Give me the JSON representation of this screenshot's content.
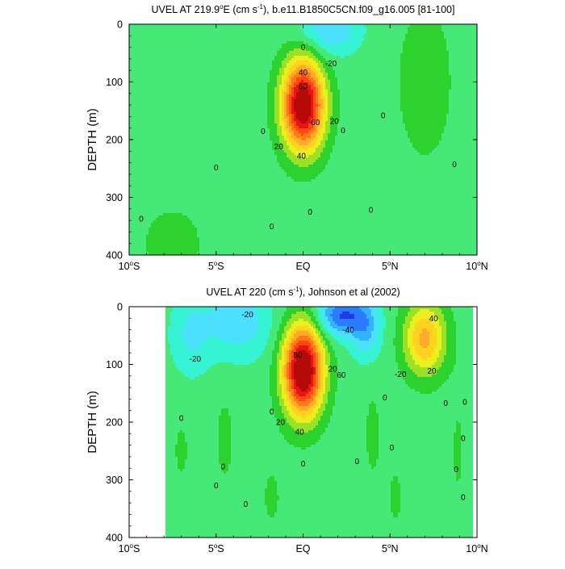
{
  "chart_data": [
    {
      "type": "heatmap",
      "title": "UVEL AT 219.9°E (cm s⁻¹), b.e11.B1850C5CN.f09_g16.005 [81-100]",
      "title_parts": {
        "pre": "UVEL AT 219.9",
        "deg": "o",
        "mid": "E (cm s",
        "sup": "-1",
        "post": "), b.e11.B1850C5CN.f09_g16.005 [81-100]"
      },
      "xlabel": "",
      "ylabel": "DEPTH (m)",
      "xlim": [
        -10,
        10
      ],
      "ylim": [
        400,
        0
      ],
      "x_ticks": [
        {
          "value": -10,
          "num": "10",
          "deg": "o",
          "hemi": "S"
        },
        {
          "value": -5,
          "num": "5",
          "deg": "o",
          "hemi": "S"
        },
        {
          "value": 0,
          "num": "EQ",
          "deg": "",
          "hemi": ""
        },
        {
          "value": 5,
          "num": "5",
          "deg": "o",
          "hemi": "N"
        },
        {
          "value": 10,
          "num": "10",
          "deg": "o",
          "hemi": "N"
        }
      ],
      "y_ticks": [
        "0",
        "100",
        "200",
        "300",
        "400"
      ],
      "y_tick_values": [
        0,
        100,
        200,
        300,
        400
      ],
      "features": [
        {
          "kind": "jet",
          "x": 0,
          "y": 140,
          "peak": 100,
          "sx": 0.85,
          "sy": 55
        },
        {
          "kind": "jet",
          "x": 7,
          "y": 100,
          "peak": 8,
          "sx": 1.5,
          "sy": 130
        },
        {
          "kind": "jet",
          "x": -7.5,
          "y": 380,
          "peak": 6,
          "sx": 2.5,
          "sy": 90
        },
        {
          "kind": "jet",
          "x": 1.5,
          "y": 10,
          "peak": -25,
          "sx": 1.2,
          "sy": 30
        }
      ],
      "contour_labels": [
        {
          "x": 0,
          "y": 40,
          "text": "0"
        },
        {
          "x": 1.6,
          "y": 68,
          "text": "-20"
        },
        {
          "x": 0,
          "y": 83,
          "text": "40"
        },
        {
          "x": 0,
          "y": 108,
          "text": "60"
        },
        {
          "x": 0.7,
          "y": 170,
          "text": "60"
        },
        {
          "x": 1.8,
          "y": 168,
          "text": "20"
        },
        {
          "x": -1.4,
          "y": 212,
          "text": "20"
        },
        {
          "x": -0.1,
          "y": 228,
          "text": "40"
        },
        {
          "x": -2.3,
          "y": 185,
          "text": "0"
        },
        {
          "x": 2.3,
          "y": 184,
          "text": "0"
        },
        {
          "x": 4.6,
          "y": 158,
          "text": "0"
        },
        {
          "x": -5.0,
          "y": 248,
          "text": "0"
        },
        {
          "x": -9.3,
          "y": 337,
          "text": "0"
        },
        {
          "x": -1.8,
          "y": 350,
          "text": "0"
        },
        {
          "x": 0.4,
          "y": 325,
          "text": "0"
        },
        {
          "x": 3.9,
          "y": 322,
          "text": "0"
        },
        {
          "x": 8.7,
          "y": 243,
          "text": "0"
        }
      ]
    },
    {
      "type": "heatmap",
      "title": "UVEL AT 220 (cm s⁻¹), Johnson et al (2002)",
      "title_parts": {
        "pre": "UVEL AT 220",
        "deg": "",
        "mid": " (cm s",
        "sup": "-1",
        "post": "), Johnson et al (2002)"
      },
      "xlabel": "",
      "ylabel": "DEPTH (m)",
      "xlim": [
        -10,
        10
      ],
      "ylim": [
        400,
        0
      ],
      "x_ticks": [
        {
          "value": -10,
          "num": "10",
          "deg": "o",
          "hemi": "S"
        },
        {
          "value": -5,
          "num": "5",
          "deg": "o",
          "hemi": "S"
        },
        {
          "value": 0,
          "num": "EQ",
          "deg": "",
          "hemi": ""
        },
        {
          "value": 5,
          "num": "5",
          "deg": "o",
          "hemi": "N"
        },
        {
          "value": 10,
          "num": "10",
          "deg": "o",
          "hemi": "N"
        }
      ],
      "y_ticks": [
        "0",
        "100",
        "200",
        "300",
        "400"
      ],
      "y_tick_values": [
        0,
        100,
        200,
        300,
        400
      ],
      "data_extent": {
        "x_min": -7.9,
        "x_max": 9.8
      },
      "features": [
        {
          "kind": "jet",
          "x": 0,
          "y": 110,
          "peak": 105,
          "sx": 0.8,
          "sy": 55
        },
        {
          "kind": "jet",
          "x": 7.0,
          "y": 55,
          "peak": 48,
          "sx": 0.85,
          "sy": 45
        },
        {
          "kind": "jet",
          "x": 2.2,
          "y": 15,
          "peak": -45,
          "sx": 1.0,
          "sy": 25
        },
        {
          "kind": "jet",
          "x": 3.6,
          "y": 40,
          "peak": -25,
          "sx": 0.6,
          "sy": 35
        },
        {
          "kind": "jet",
          "x": -3.8,
          "y": 25,
          "peak": -22,
          "sx": 1.4,
          "sy": 45
        },
        {
          "kind": "jet",
          "x": -6.5,
          "y": 50,
          "peak": -15,
          "sx": 0.8,
          "sy": 50
        },
        {
          "kind": "jet",
          "x": 4.0,
          "y": 220,
          "peak": 8,
          "sx": 0.35,
          "sy": 60
        },
        {
          "kind": "jet",
          "x": -4.5,
          "y": 230,
          "peak": 7,
          "sx": 0.5,
          "sy": 70
        },
        {
          "kind": "jet",
          "x": -7.0,
          "y": 250,
          "peak": 6,
          "sx": 0.5,
          "sy": 60
        },
        {
          "kind": "jet",
          "x": -1.8,
          "y": 330,
          "peak": 6,
          "sx": 0.6,
          "sy": 60
        },
        {
          "kind": "jet",
          "x": 5.3,
          "y": 330,
          "peak": 6,
          "sx": 0.5,
          "sy": 60
        },
        {
          "kind": "jet",
          "x": 8.9,
          "y": 250,
          "peak": 6,
          "sx": 0.35,
          "sy": 90
        }
      ],
      "contour_labels": [
        {
          "x": -3.2,
          "y": 13,
          "text": "-20"
        },
        {
          "x": 2.6,
          "y": 40,
          "text": "-40"
        },
        {
          "x": -6.2,
          "y": 90,
          "text": "-20"
        },
        {
          "x": 5.6,
          "y": 117,
          "text": "-20"
        },
        {
          "x": -0.3,
          "y": 83,
          "text": "80"
        },
        {
          "x": 1.7,
          "y": 108,
          "text": "20"
        },
        {
          "x": 2.2,
          "y": 118,
          "text": "60"
        },
        {
          "x": -1.3,
          "y": 200,
          "text": "20"
        },
        {
          "x": -0.2,
          "y": 217,
          "text": "40"
        },
        {
          "x": 7.5,
          "y": 20,
          "text": "40"
        },
        {
          "x": 7.4,
          "y": 111,
          "text": "20"
        },
        {
          "x": 4.7,
          "y": 157,
          "text": "0"
        },
        {
          "x": -1.8,
          "y": 182,
          "text": "0"
        },
        {
          "x": -7.0,
          "y": 193,
          "text": "0"
        },
        {
          "x": -5.0,
          "y": 310,
          "text": "0"
        },
        {
          "x": -4.6,
          "y": 277,
          "text": "0"
        },
        {
          "x": -3.3,
          "y": 342,
          "text": "0"
        },
        {
          "x": 0,
          "y": 272,
          "text": "0"
        },
        {
          "x": 3.1,
          "y": 268,
          "text": "0"
        },
        {
          "x": 5.1,
          "y": 244,
          "text": "0"
        },
        {
          "x": 8.2,
          "y": 167,
          "text": "0"
        },
        {
          "x": 9.3,
          "y": 165,
          "text": "0"
        },
        {
          "x": 9.2,
          "y": 228,
          "text": "0"
        },
        {
          "x": 8.8,
          "y": 282,
          "text": "0"
        },
        {
          "x": 9.2,
          "y": 330,
          "text": "0"
        }
      ]
    }
  ]
}
